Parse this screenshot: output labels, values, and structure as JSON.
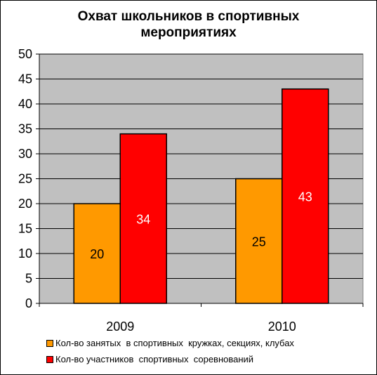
{
  "chart_data": {
    "type": "bar",
    "title": "Охват школьников в спортивных мероприятиях",
    "title_lines": [
      "Охват школьников в спортивных",
      "мероприятиях"
    ],
    "categories": [
      "2009",
      "2010"
    ],
    "series": [
      {
        "name": "Кол-во занятых  в спортивных  кружках, секциях, клубах",
        "values": [
          20,
          25
        ],
        "color": "#FF9900",
        "label_color": "#000000"
      },
      {
        "name": "Кол-во участников  спортивных  соревнований",
        "values": [
          34,
          43
        ],
        "color": "#FF0000",
        "label_color": "#FFFFFF"
      }
    ],
    "ylim": [
      0,
      50
    ],
    "yticks": [
      0,
      5,
      10,
      15,
      20,
      25,
      30,
      35,
      40,
      45,
      50
    ],
    "grid": true,
    "plot_background": "#C0C0C0",
    "legend_position": "bottom"
  }
}
